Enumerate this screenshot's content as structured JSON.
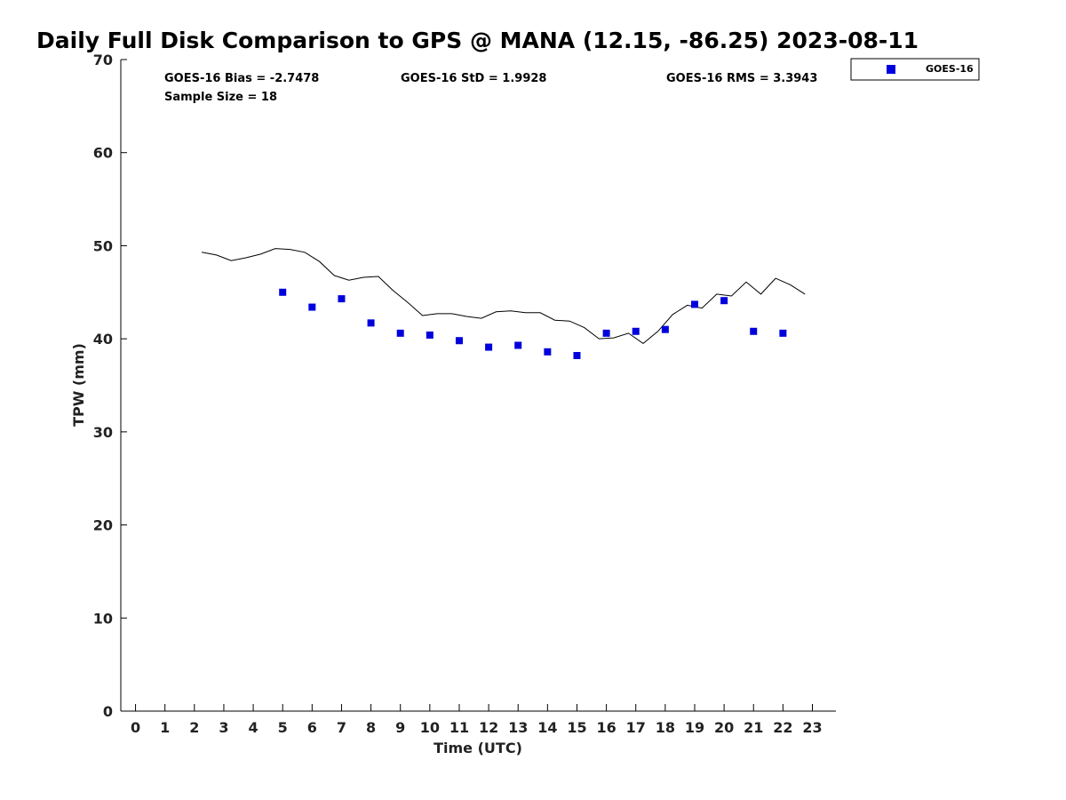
{
  "chart_data": {
    "type": "scatter",
    "title": "Daily Full Disk Comparison to GPS @ MANA (12.15, -86.25) 2023-08-11",
    "xlabel": "Time (UTC)",
    "ylabel": "TPW (mm)",
    "xlim": [
      -0.5,
      23.8
    ],
    "ylim": [
      0,
      70
    ],
    "x_ticks": [
      0,
      1,
      2,
      3,
      4,
      5,
      6,
      7,
      8,
      9,
      10,
      11,
      12,
      13,
      14,
      15,
      16,
      17,
      18,
      19,
      20,
      21,
      22,
      23
    ],
    "y_ticks": [
      0,
      10,
      20,
      30,
      40,
      50,
      60,
      70
    ],
    "grid": false,
    "legend_position": "top-right (outside)",
    "stats": {
      "bias": "GOES-16 Bias = -2.7478",
      "std": "GOES-16 StD = 1.9928",
      "rms": "GOES-16 RMS = 3.3943",
      "sample": "Sample Size = 18"
    },
    "series": [
      {
        "name": "GOES-16",
        "kind": "scatter",
        "marker": "square",
        "color": "#0000dd",
        "x": [
          5,
          6,
          7,
          8,
          9,
          10,
          11,
          12,
          13,
          14,
          15,
          16,
          17,
          18,
          19,
          20,
          21,
          22
        ],
        "y": [
          45.0,
          43.4,
          44.3,
          41.7,
          40.6,
          40.4,
          39.8,
          39.1,
          39.3,
          38.6,
          38.2,
          40.6,
          40.8,
          41.0,
          43.7,
          44.1,
          40.8,
          40.6
        ]
      },
      {
        "kind": "line",
        "color": "#000000",
        "x": [
          2.25,
          2.75,
          3.25,
          3.75,
          4.25,
          4.75,
          5.25,
          5.75,
          6.25,
          6.75,
          7.25,
          7.75,
          8.25,
          8.75,
          9.25,
          9.75,
          10.25,
          10.75,
          11.25,
          11.75,
          12.25,
          12.75,
          13.25,
          13.75,
          14.25,
          14.75,
          15.25,
          15.75,
          16.25,
          16.75,
          17.25,
          17.75,
          18.25,
          18.75,
          19.25,
          19.75,
          20.25,
          20.75,
          21.25,
          21.75,
          22.25,
          22.75
        ],
        "y": [
          49.3,
          49.0,
          48.4,
          48.7,
          49.1,
          49.7,
          49.6,
          49.3,
          48.3,
          46.8,
          46.3,
          46.6,
          46.7,
          45.2,
          43.9,
          42.5,
          42.7,
          42.7,
          42.4,
          42.2,
          42.9,
          43.0,
          42.8,
          42.8,
          42.0,
          41.9,
          41.2,
          40.0,
          40.1,
          40.6,
          39.5,
          40.8,
          42.6,
          43.6,
          43.3,
          44.8,
          44.6,
          46.1,
          44.8,
          46.5,
          45.8,
          44.8
        ]
      }
    ]
  }
}
